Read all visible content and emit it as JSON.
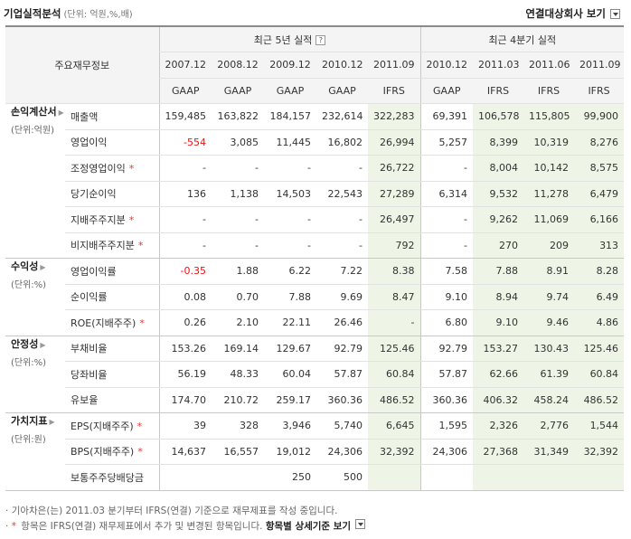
{
  "header": {
    "title": "기업실적분석",
    "unit": "(단위: 억원,%,배)",
    "consolidated_label": "연결대상회사 보기"
  },
  "table": {
    "main_header": "주요재무정보",
    "group_annual": "최근 5년 실적",
    "group_quarterly": "최근 4분기 실적",
    "help_icon": "?",
    "periods": [
      "2007.12",
      "2008.12",
      "2009.12",
      "2010.12",
      "2011.09",
      "2010.12",
      "2011.03",
      "2011.06",
      "2011.09"
    ],
    "standards": [
      "GAAP",
      "GAAP",
      "GAAP",
      "GAAP",
      "IFRS",
      "GAAP",
      "IFRS",
      "IFRS",
      "IFRS"
    ],
    "star_marker": "*",
    "sections": [
      {
        "name": "손익계산서",
        "unit": "(단위:억원)",
        "rows": [
          {
            "label": "매출액",
            "star": false,
            "values": [
              "159,485",
              "163,822",
              "184,157",
              "232,614",
              "322,283",
              "69,391",
              "106,578",
              "115,805",
              "99,900"
            ]
          },
          {
            "label": "영업이익",
            "star": false,
            "values": [
              "-554",
              "3,085",
              "11,445",
              "16,802",
              "26,994",
              "5,257",
              "8,399",
              "10,319",
              "8,276"
            ]
          },
          {
            "label": "조정영업이익",
            "star": true,
            "values": [
              "-",
              "-",
              "-",
              "-",
              "26,722",
              "-",
              "8,004",
              "10,142",
              "8,575"
            ]
          },
          {
            "label": "당기순이익",
            "star": false,
            "values": [
              "136",
              "1,138",
              "14,503",
              "22,543",
              "27,289",
              "6,314",
              "9,532",
              "11,278",
              "6,479"
            ]
          },
          {
            "label": "지배주주지분",
            "star": true,
            "values": [
              "-",
              "-",
              "-",
              "-",
              "26,497",
              "-",
              "9,262",
              "11,069",
              "6,166"
            ]
          },
          {
            "label": "비지배주주지분",
            "star": true,
            "values": [
              "-",
              "-",
              "-",
              "-",
              "792",
              "-",
              "270",
              "209",
              "313"
            ]
          }
        ]
      },
      {
        "name": "수익성",
        "unit": "(단위:%)",
        "rows": [
          {
            "label": "영업이익률",
            "star": false,
            "values": [
              "-0.35",
              "1.88",
              "6.22",
              "7.22",
              "8.38",
              "7.58",
              "7.88",
              "8.91",
              "8.28"
            ]
          },
          {
            "label": "순이익률",
            "star": false,
            "values": [
              "0.08",
              "0.70",
              "7.88",
              "9.69",
              "8.47",
              "9.10",
              "8.94",
              "9.74",
              "6.49"
            ]
          },
          {
            "label": "ROE(지배주주)",
            "star": true,
            "values": [
              "0.26",
              "2.10",
              "22.11",
              "26.46",
              "-",
              "6.80",
              "9.10",
              "9.46",
              "4.86"
            ]
          }
        ]
      },
      {
        "name": "안정성",
        "unit": "(단위:%)",
        "rows": [
          {
            "label": "부채비율",
            "star": false,
            "values": [
              "153.26",
              "169.14",
              "129.67",
              "92.79",
              "125.46",
              "92.79",
              "153.27",
              "130.43",
              "125.46"
            ]
          },
          {
            "label": "당좌비율",
            "star": false,
            "values": [
              "56.19",
              "48.33",
              "60.04",
              "57.87",
              "60.84",
              "57.87",
              "62.66",
              "61.39",
              "60.84"
            ]
          },
          {
            "label": "유보율",
            "star": false,
            "values": [
              "174.70",
              "210.72",
              "259.17",
              "360.36",
              "486.52",
              "360.36",
              "406.32",
              "458.24",
              "486.52"
            ]
          }
        ]
      },
      {
        "name": "가치지표",
        "unit": "(단위:원)",
        "rows": [
          {
            "label": "EPS(지배주주)",
            "star": true,
            "values": [
              "39",
              "328",
              "3,946",
              "5,740",
              "6,645",
              "1,595",
              "2,326",
              "2,776",
              "1,544"
            ]
          },
          {
            "label": "BPS(지배주주)",
            "star": true,
            "values": [
              "14,637",
              "16,557",
              "19,012",
              "24,306",
              "32,392",
              "24,306",
              "27,368",
              "31,349",
              "32,392"
            ]
          },
          {
            "label": "보통주주당배당금",
            "star": false,
            "values": [
              "",
              "",
              "250",
              "500",
              "",
              "",
              "",
              "",
              ""
            ]
          }
        ]
      }
    ]
  },
  "notes": {
    "line1": "기아차은(는) 2011.03 분기부터 IFRS(연결) 기준으로 재무제표를 작성 중입니다.",
    "line2_text": "항목은 IFRS(연결) 재무제표에서 추가 및 변경된 항목입니다.",
    "line2_link": "항목별 상세기준 보기"
  }
}
